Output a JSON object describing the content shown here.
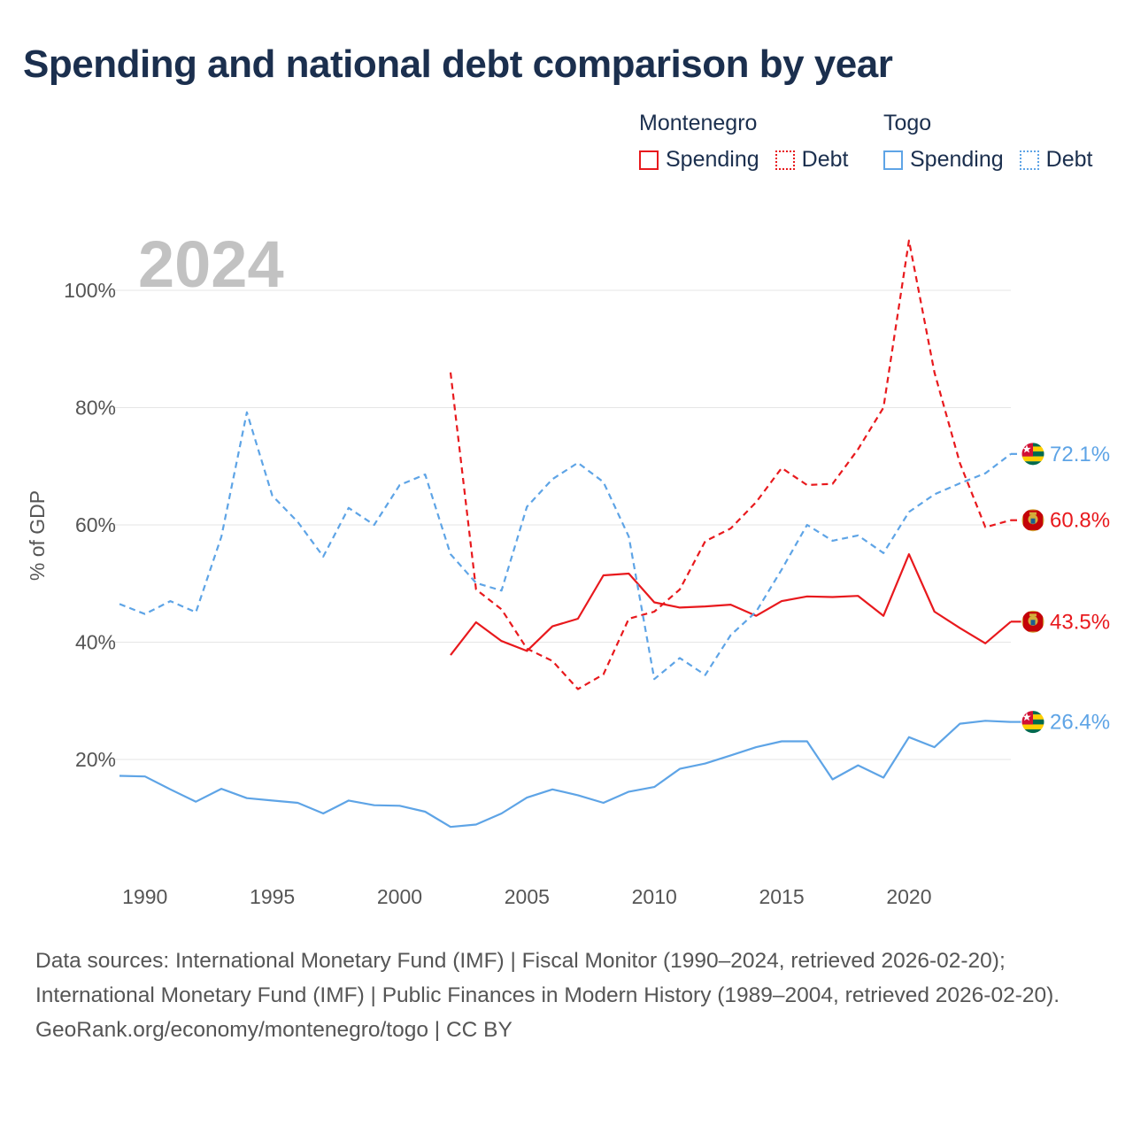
{
  "title": "Spending and national debt comparison by year",
  "legend": [
    {
      "country": "Montenegro",
      "color": "#e8191d",
      "items": [
        "Spending",
        "Debt"
      ]
    },
    {
      "country": "Togo",
      "color": "#5ea4e6",
      "items": [
        "Spending",
        "Debt"
      ]
    }
  ],
  "footer": {
    "sources": "Data sources: International Monetary Fund (IMF) | Fiscal Monitor (1990–2024, retrieved 2026-02-20); International Monetary Fund (IMF) | Public Finances in Modern History (1989–2004, retrieved 2026-02-20).",
    "credit": "GeoRank.org/economy/montenegro/togo | CC BY"
  },
  "chart_data": {
    "type": "line",
    "title": "Spending and national debt comparison by year",
    "year_label": "2024",
    "ylabel": "% of GDP",
    "xlabel": "",
    "xlim": [
      1989,
      2024
    ],
    "ylim": [
      0,
      110
    ],
    "x_ticks": [
      1990,
      1995,
      2000,
      2005,
      2010,
      2015,
      2020
    ],
    "y_ticks": [
      20,
      40,
      60,
      80,
      100
    ],
    "y_tick_labels": [
      "20%",
      "40%",
      "60%",
      "80%",
      "100%"
    ],
    "grid": true,
    "series": [
      {
        "name": "Montenegro Spending",
        "country": "Montenegro",
        "metric": "Spending",
        "color": "#e8191d",
        "dashed": false,
        "end_label": "43.5%",
        "flag": "montenegro-flag-icon",
        "x": [
          2002,
          2003,
          2004,
          2005,
          2006,
          2007,
          2008,
          2009,
          2010,
          2011,
          2012,
          2013,
          2014,
          2015,
          2016,
          2017,
          2018,
          2019,
          2020,
          2021,
          2022,
          2023,
          2024
        ],
        "values": [
          37.8,
          43.4,
          40.2,
          38.5,
          42.7,
          44.0,
          51.4,
          51.7,
          46.8,
          45.9,
          46.1,
          46.4,
          44.5,
          47.0,
          47.8,
          47.7,
          47.9,
          44.5,
          55.0,
          45.2,
          42.4,
          39.8,
          43.5
        ]
      },
      {
        "name": "Montenegro Debt",
        "country": "Montenegro",
        "metric": "Debt",
        "color": "#e8191d",
        "dashed": true,
        "end_label": "60.8%",
        "flag": "montenegro-flag-icon",
        "x": [
          2002,
          2003,
          2004,
          2005,
          2006,
          2007,
          2008,
          2009,
          2010,
          2011,
          2012,
          2013,
          2014,
          2015,
          2016,
          2017,
          2018,
          2019,
          2020,
          2021,
          2022,
          2023,
          2024
        ],
        "values": [
          86.0,
          49.0,
          45.6,
          38.9,
          36.8,
          32.0,
          34.5,
          44.0,
          45.2,
          49.0,
          57.2,
          59.4,
          63.9,
          69.7,
          66.8,
          67.0,
          72.9,
          80.0,
          108.5,
          86.0,
          70.5,
          59.6,
          60.8
        ]
      },
      {
        "name": "Togo Spending",
        "country": "Togo",
        "metric": "Spending",
        "color": "#5ea4e6",
        "dashed": false,
        "end_label": "26.4%",
        "flag": "togo-flag-icon",
        "x": [
          1989,
          1990,
          1991,
          1992,
          1993,
          1994,
          1995,
          1996,
          1997,
          1998,
          1999,
          2000,
          2001,
          2002,
          2003,
          2004,
          2005,
          2006,
          2007,
          2008,
          2009,
          2010,
          2011,
          2012,
          2013,
          2014,
          2015,
          2016,
          2017,
          2018,
          2019,
          2020,
          2021,
          2022,
          2023,
          2024
        ],
        "values": [
          17.2,
          17.1,
          14.9,
          12.8,
          15.0,
          13.4,
          13.0,
          12.6,
          10.8,
          13.0,
          12.2,
          12.1,
          11.1,
          8.5,
          8.9,
          10.8,
          13.5,
          14.9,
          13.9,
          12.6,
          14.5,
          15.3,
          18.4,
          19.3,
          20.7,
          22.1,
          23.1,
          23.1,
          16.6,
          19.0,
          16.9,
          23.8,
          22.1,
          26.1,
          26.6,
          26.4
        ]
      },
      {
        "name": "Togo Debt",
        "country": "Togo",
        "metric": "Debt",
        "color": "#5ea4e6",
        "dashed": true,
        "end_label": "72.1%",
        "flag": "togo-flag-icon",
        "x": [
          1989,
          1990,
          1991,
          1992,
          1993,
          1994,
          1995,
          1996,
          1997,
          1998,
          1999,
          2000,
          2001,
          2002,
          2003,
          2004,
          2005,
          2006,
          2007,
          2008,
          2009,
          2010,
          2011,
          2012,
          2013,
          2014,
          2015,
          2016,
          2017,
          2018,
          2019,
          2020,
          2021,
          2022,
          2023,
          2024
        ],
        "values": [
          46.5,
          44.8,
          47.0,
          45.1,
          58.0,
          79.2,
          65.0,
          60.5,
          54.6,
          62.9,
          60.0,
          66.8,
          68.6,
          55.0,
          50.1,
          48.8,
          63.1,
          67.8,
          70.6,
          67.3,
          58.0,
          33.7,
          37.3,
          34.4,
          41.2,
          45.2,
          52.4,
          60.0,
          57.3,
          58.2,
          55.2,
          62.2,
          65.2,
          67.1,
          68.8,
          72.1
        ]
      }
    ]
  }
}
